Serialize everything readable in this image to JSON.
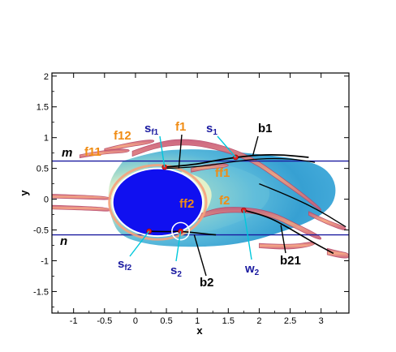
{
  "chart_data": {
    "type": "contour",
    "xlabel": "x",
    "ylabel": "y",
    "xlim": [
      -1.35,
      3.45
    ],
    "ylim": [
      -1.85,
      2.05
    ],
    "xticks": [
      -1,
      -0.5,
      0,
      0.5,
      1,
      1.5,
      2,
      2.5,
      3
    ],
    "yticks": [
      -1.5,
      -1,
      -0.5,
      0,
      0.5,
      1,
      1.5,
      2
    ],
    "xtick_labels": [
      "-1",
      "-0.5",
      "0",
      "0.5",
      "1",
      "1.5",
      "2",
      "2.5",
      "3"
    ],
    "ytick_labels": [
      "-1.5",
      "-1",
      "-0.5",
      "0",
      "0.5",
      "1",
      "1.5",
      "2"
    ],
    "grid": false,
    "colors": {
      "body": "#1010f0",
      "frame": "#1a1aa0",
      "orange_text": "#f08c14",
      "blue_text": "#1a1aa0",
      "cyan_leader": "#00c8dc",
      "filament_fill": "#f08a6a",
      "filament_edge": "#b84a6a",
      "wake_outer": "#3fa8d6",
      "wake_inner": "#f2f7c8",
      "separation_point": "#e02020"
    },
    "body_ellipse": {
      "cx": 0.36,
      "cy": -0.05,
      "rx": 0.73,
      "ry": 0.55
    },
    "horizontal_lines": [
      {
        "name": "m",
        "y": 0.62
      },
      {
        "name": "n",
        "y": -0.58
      }
    ],
    "points": [
      {
        "name": "s_f1",
        "x": 0.47,
        "y": 0.52
      },
      {
        "name": "s_1",
        "x": 1.62,
        "y": 0.68
      },
      {
        "name": "w_2",
        "x": 1.75,
        "y": -0.18
      },
      {
        "name": "s_f2",
        "x": 0.22,
        "y": -0.52
      },
      {
        "name": "s_2",
        "x": 0.73,
        "y": -0.52
      }
    ],
    "highlight_circle": {
      "x": 0.73,
      "y": -0.52,
      "r": 0.14
    },
    "annotations": {
      "m": "m",
      "n": "n",
      "f11": "f11",
      "f12": "f12",
      "f1": "f1",
      "f1_2": "f1",
      "ff1": "ff1",
      "ff2": "ff2",
      "f2": "f2",
      "b1": "b1",
      "b2": "b2",
      "b21": "b21",
      "sf1_main": "s",
      "sf1_sub": "f1",
      "s1_main": "s",
      "s1_sub": "1",
      "sf2_main": "s",
      "sf2_sub": "f2",
      "s2_main": "s",
      "s2_sub": "2",
      "w2_main": "w",
      "w2_sub": "2"
    }
  }
}
